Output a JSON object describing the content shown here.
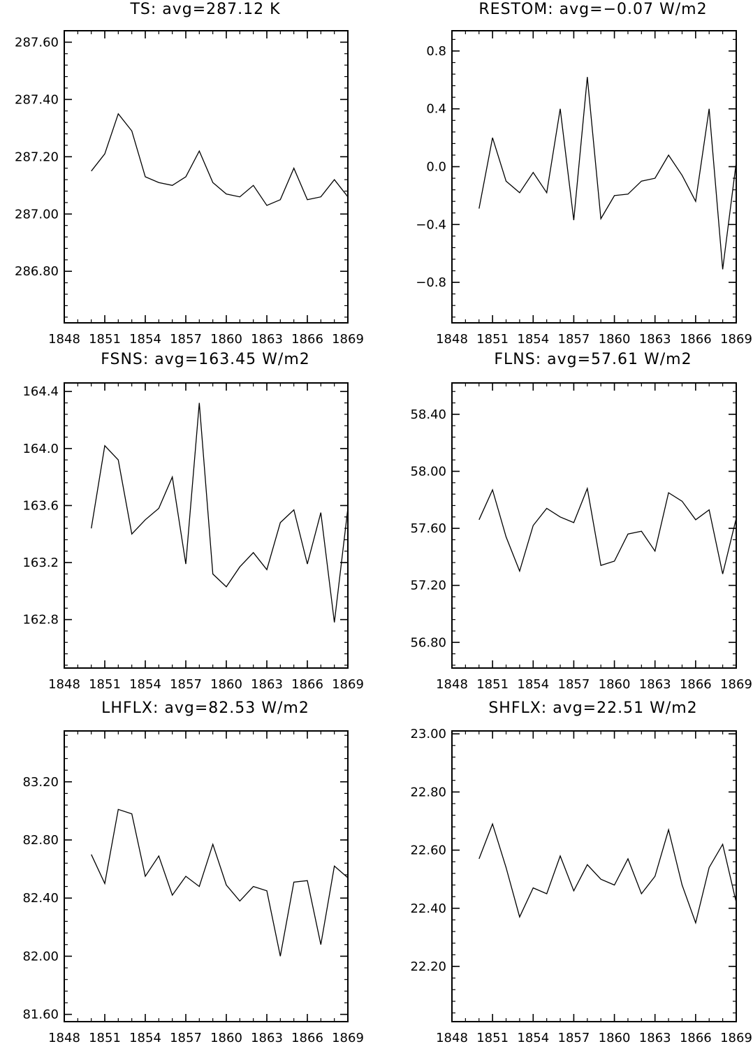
{
  "figure": {
    "panels": [
      {
        "title": "TS: avg=287.12 K"
      },
      {
        "title": "RESTOM: avg=−0.07 W/m2"
      },
      {
        "title": "FSNS: avg=163.45 W/m2"
      },
      {
        "title": "FLNS: avg=57.61 W/m2"
      },
      {
        "title": "LHFLX: avg=82.53 W/m2"
      },
      {
        "title": "SHFLX: avg=22.51 W/m2"
      }
    ]
  },
  "chart_data": [
    {
      "type": "line",
      "title": "TS: avg=287.12 K",
      "xlim": [
        1848,
        1869
      ],
      "ylim": [
        286.62,
        287.64
      ],
      "xticks": [
        1848,
        1851,
        1854,
        1857,
        1860,
        1863,
        1866,
        1869
      ],
      "xtick_labels": [
        "1848",
        "1851",
        "1854",
        "1857",
        "1860",
        "1863",
        "1866",
        "1869"
      ],
      "yticks": [
        286.8,
        287.0,
        287.2,
        287.4,
        287.6
      ],
      "ytick_labels": [
        "286.80",
        "287.00",
        "287.20",
        "287.40",
        "287.60"
      ],
      "y_minor_step": 0.04,
      "x": [
        1850,
        1851,
        1852,
        1853,
        1854,
        1855,
        1856,
        1857,
        1858,
        1859,
        1860,
        1861,
        1862,
        1863,
        1864,
        1865,
        1866,
        1867,
        1868,
        1869
      ],
      "y": [
        287.15,
        287.21,
        287.35,
        287.29,
        287.13,
        287.11,
        287.1,
        287.13,
        287.22,
        287.11,
        287.07,
        287.06,
        287.1,
        287.03,
        287.05,
        287.16,
        287.05,
        287.06,
        287.12,
        287.06
      ]
    },
    {
      "type": "line",
      "title": "RESTOM: avg=−0.07 W/m2",
      "xlim": [
        1848,
        1869
      ],
      "ylim": [
        -1.08,
        0.94
      ],
      "xticks": [
        1848,
        1851,
        1854,
        1857,
        1860,
        1863,
        1866,
        1869
      ],
      "xtick_labels": [
        "1848",
        "1851",
        "1854",
        "1857",
        "1860",
        "1863",
        "1866",
        "1869"
      ],
      "yticks": [
        -0.8,
        -0.4,
        0.0,
        0.4,
        0.8
      ],
      "ytick_labels": [
        "−0.8",
        "−0.4",
        "0.0",
        "0.4",
        "0.8"
      ],
      "y_minor_step": 0.08,
      "x": [
        1850,
        1851,
        1852,
        1853,
        1854,
        1855,
        1856,
        1857,
        1858,
        1859,
        1860,
        1861,
        1862,
        1863,
        1864,
        1865,
        1866,
        1867,
        1868,
        1869
      ],
      "y": [
        -0.29,
        0.2,
        -0.1,
        -0.18,
        -0.04,
        -0.18,
        0.4,
        -0.37,
        0.62,
        -0.36,
        -0.2,
        -0.19,
        -0.1,
        -0.08,
        0.08,
        -0.06,
        -0.24,
        0.4,
        -0.71,
        0.03
      ]
    },
    {
      "type": "line",
      "title": "FSNS: avg=163.45 W/m2",
      "xlim": [
        1848,
        1869
      ],
      "ylim": [
        162.46,
        164.46
      ],
      "xticks": [
        1848,
        1851,
        1854,
        1857,
        1860,
        1863,
        1866,
        1869
      ],
      "xtick_labels": [
        "1848",
        "1851",
        "1854",
        "1857",
        "1860",
        "1863",
        "1866",
        "1869"
      ],
      "yticks": [
        162.8,
        163.2,
        163.6,
        164.0,
        164.4
      ],
      "ytick_labels": [
        "162.8",
        "163.2",
        "163.6",
        "164.0",
        "164.4"
      ],
      "y_minor_step": 0.08,
      "x": [
        1850,
        1851,
        1852,
        1853,
        1854,
        1855,
        1856,
        1857,
        1858,
        1859,
        1860,
        1861,
        1862,
        1863,
        1864,
        1865,
        1866,
        1867,
        1868,
        1869
      ],
      "y": [
        163.44,
        164.02,
        163.92,
        163.4,
        163.5,
        163.58,
        163.8,
        163.19,
        164.32,
        163.12,
        163.03,
        163.17,
        163.27,
        163.15,
        163.48,
        163.57,
        163.19,
        163.55,
        162.78,
        163.58
      ]
    },
    {
      "type": "line",
      "title": "FLNS: avg=57.61 W/m2",
      "xlim": [
        1848,
        1869
      ],
      "ylim": [
        56.62,
        58.62
      ],
      "xticks": [
        1848,
        1851,
        1854,
        1857,
        1860,
        1863,
        1866,
        1869
      ],
      "xtick_labels": [
        "1848",
        "1851",
        "1854",
        "1857",
        "1860",
        "1863",
        "1866",
        "1869"
      ],
      "yticks": [
        56.8,
        57.2,
        57.6,
        58.0,
        58.4
      ],
      "ytick_labels": [
        "56.80",
        "57.20",
        "57.60",
        "58.00",
        "58.40"
      ],
      "y_minor_step": 0.08,
      "x": [
        1850,
        1851,
        1852,
        1853,
        1854,
        1855,
        1856,
        1857,
        1858,
        1859,
        1860,
        1861,
        1862,
        1863,
        1864,
        1865,
        1866,
        1867,
        1868,
        1869
      ],
      "y": [
        57.66,
        57.87,
        57.54,
        57.3,
        57.62,
        57.74,
        57.68,
        57.64,
        57.88,
        57.34,
        57.37,
        57.56,
        57.58,
        57.44,
        57.85,
        57.79,
        57.66,
        57.73,
        57.28,
        57.67
      ]
    },
    {
      "type": "line",
      "title": "LHFLX: avg=82.53 W/m2",
      "xlim": [
        1848,
        1869
      ],
      "ylim": [
        81.55,
        83.55
      ],
      "xticks": [
        1848,
        1851,
        1854,
        1857,
        1860,
        1863,
        1866,
        1869
      ],
      "xtick_labels": [
        "1848",
        "1851",
        "1854",
        "1857",
        "1860",
        "1863",
        "1866",
        "1869"
      ],
      "yticks": [
        81.6,
        82.0,
        82.4,
        82.8,
        83.2
      ],
      "ytick_labels": [
        "81.60",
        "82.00",
        "82.40",
        "82.80",
        "83.20"
      ],
      "y_minor_step": 0.08,
      "x": [
        1850,
        1851,
        1852,
        1853,
        1854,
        1855,
        1856,
        1857,
        1858,
        1859,
        1860,
        1861,
        1862,
        1863,
        1864,
        1865,
        1866,
        1867,
        1868,
        1869
      ],
      "y": [
        82.7,
        82.5,
        83.01,
        82.98,
        82.55,
        82.69,
        82.42,
        82.55,
        82.48,
        82.77,
        82.49,
        82.38,
        82.48,
        82.45,
        82.0,
        82.51,
        82.52,
        82.08,
        82.62,
        82.54
      ]
    },
    {
      "type": "line",
      "title": "SHFLX: avg=22.51 W/m2",
      "xlim": [
        1848,
        1869
      ],
      "ylim": [
        22.01,
        23.01
      ],
      "xticks": [
        1848,
        1851,
        1854,
        1857,
        1860,
        1863,
        1866,
        1869
      ],
      "xtick_labels": [
        "1848",
        "1851",
        "1854",
        "1857",
        "1860",
        "1863",
        "1866",
        "1869"
      ],
      "yticks": [
        22.2,
        22.4,
        22.6,
        22.8,
        23.0
      ],
      "ytick_labels": [
        "22.20",
        "22.40",
        "22.60",
        "22.80",
        "23.00"
      ],
      "y_minor_step": 0.04,
      "x": [
        1850,
        1851,
        1852,
        1853,
        1854,
        1855,
        1856,
        1857,
        1858,
        1859,
        1860,
        1861,
        1862,
        1863,
        1864,
        1865,
        1866,
        1867,
        1868,
        1869
      ],
      "y": [
        22.57,
        22.69,
        22.54,
        22.37,
        22.47,
        22.45,
        22.58,
        22.46,
        22.55,
        22.5,
        22.48,
        22.57,
        22.45,
        22.51,
        22.67,
        22.48,
        22.35,
        22.54,
        22.62,
        22.42
      ]
    }
  ]
}
